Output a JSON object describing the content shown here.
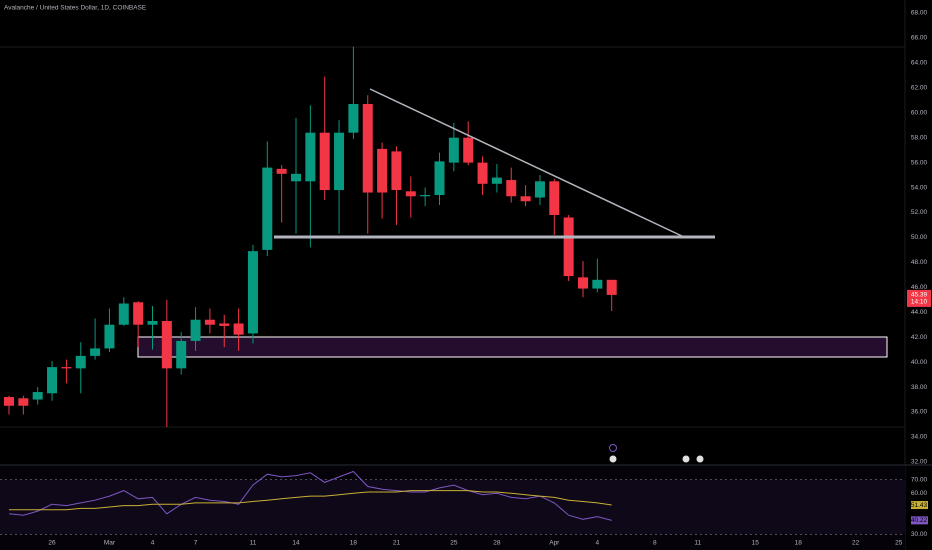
{
  "chart_data": [
    {
      "type": "candlestick",
      "title": "Avalanche / United States Dollar, 1D, COINBASE",
      "countdown": "14:10",
      "up_color": "#089981",
      "down_color": "#f23645",
      "categories": [
        null,
        null,
        null,
        "26",
        null,
        null,
        null,
        "Mar",
        null,
        null,
        "4",
        null,
        null,
        "7",
        null,
        null,
        null,
        "11",
        null,
        null,
        "14",
        null,
        null,
        null,
        "18",
        null,
        null,
        "21",
        null,
        null,
        null,
        "25",
        null,
        null,
        "28",
        null,
        null,
        null,
        "Apr",
        null,
        null,
        "4",
        null,
        null,
        null,
        "8",
        null,
        null,
        "11",
        null,
        null,
        null,
        "15",
        null,
        null,
        "18",
        null,
        null,
        null,
        "22",
        null,
        null,
        "25"
      ],
      "open": [
        37.2,
        37.1,
        37.0,
        37.5,
        39.6,
        39.5,
        40.5,
        41.1,
        43.0,
        44.8,
        43.0,
        43.3,
        39.5,
        41.7,
        43.4,
        43.1,
        43.1,
        42.3,
        49.0,
        55.5,
        54.5,
        54.5,
        58.4,
        53.8,
        58.4,
        60.7,
        57.1,
        56.9,
        53.7,
        53.3,
        53.4,
        56.0,
        58.0,
        56.0,
        54.3,
        54.6,
        53.3,
        53.2,
        54.5,
        51.6,
        46.8,
        45.9,
        46.6,
        null,
        null,
        null,
        null,
        null,
        null,
        null,
        null,
        null,
        null,
        null,
        null,
        null,
        null,
        null,
        null,
        null,
        null,
        null,
        null
      ],
      "high": [
        37.3,
        37.3,
        38.0,
        40.1,
        40.2,
        41.6,
        43.5,
        44.3,
        45.2,
        44.9,
        44.5,
        45.0,
        42.4,
        44.4,
        44.3,
        43.8,
        44.3,
        49.4,
        57.7,
        55.8,
        59.6,
        60.6,
        62.9,
        59.4,
        65.3,
        61.4,
        57.6,
        57.3,
        54.9,
        54.0,
        56.8,
        59.2,
        59.3,
        56.5,
        55.9,
        55.6,
        54.2,
        55.0,
        54.7,
        51.8,
        48.1,
        48.3,
        46.6,
        null,
        null,
        null,
        null,
        null,
        null,
        null,
        null,
        null,
        null,
        null,
        null,
        null,
        null,
        null,
        null,
        null,
        null,
        null,
        null
      ],
      "low": [
        35.8,
        35.8,
        36.6,
        36.9,
        38.3,
        37.5,
        40.2,
        40.8,
        42.9,
        41.2,
        41.0,
        34.8,
        39.0,
        40.9,
        42.3,
        41.2,
        40.9,
        41.5,
        48.5,
        51.2,
        50.3,
        49.2,
        53.0,
        50.3,
        57.9,
        50.3,
        51.5,
        51.0,
        51.6,
        52.5,
        52.6,
        55.3,
        55.8,
        53.4,
        53.6,
        52.8,
        52.5,
        52.6,
        50.2,
        46.5,
        45.2,
        45.6,
        44.1,
        null,
        null,
        null,
        null,
        null,
        null,
        null,
        null,
        null,
        null,
        null,
        null,
        null,
        null,
        null,
        null,
        null,
        null,
        null,
        null
      ],
      "close": [
        36.5,
        36.5,
        37.6,
        39.6,
        39.5,
        40.5,
        41.1,
        43.0,
        44.7,
        43.0,
        43.3,
        39.5,
        41.7,
        43.4,
        43.0,
        42.9,
        42.2,
        48.9,
        55.6,
        55.1,
        55.1,
        58.4,
        53.8,
        58.4,
        60.7,
        53.6,
        53.6,
        53.8,
        53.3,
        53.4,
        56.1,
        58.0,
        56.0,
        54.3,
        54.8,
        53.3,
        52.9,
        54.5,
        51.8,
        46.9,
        45.9,
        46.6,
        45.39,
        null,
        null,
        null,
        null,
        null,
        null,
        null,
        null,
        null,
        null,
        null,
        null,
        null,
        null,
        null,
        null,
        null,
        null,
        null,
        null
      ],
      "ylim": [
        31.75,
        69.04
      ],
      "yticks": [
        {
          "value": 32,
          "label": "32.00"
        },
        {
          "value": 34,
          "label": "34.00"
        },
        {
          "value": 36,
          "label": "36.00"
        },
        {
          "value": 38,
          "label": "38.00"
        },
        {
          "value": 40,
          "label": "40.00"
        },
        {
          "value": 42,
          "label": "42.00"
        },
        {
          "value": 44,
          "label": "44.00"
        },
        {
          "value": 46,
          "label": "46.00"
        },
        {
          "value": 48,
          "label": "48.00"
        },
        {
          "value": 50,
          "label": "50.00"
        },
        {
          "value": 52,
          "label": "52.00"
        },
        {
          "value": 54,
          "label": "54.00"
        },
        {
          "value": 56,
          "label": "56.00"
        },
        {
          "value": 58,
          "label": "58.00"
        },
        {
          "value": 60,
          "label": "60.00"
        },
        {
          "value": 62,
          "label": "62.00"
        },
        {
          "value": 64,
          "label": "64.00"
        },
        {
          "value": 66,
          "label": "66.00"
        },
        {
          "value": 68,
          "label": "68.00"
        }
      ]
    },
    {
      "type": "line",
      "series": [
        {
          "name": "RSI",
          "color": "#7e57c2",
          "values": [
            45,
            44,
            47,
            52,
            51,
            53,
            55,
            58,
            62,
            56,
            57,
            45,
            52,
            57,
            55,
            54,
            52,
            66,
            74,
            72,
            73,
            75,
            68,
            72,
            76,
            65,
            63,
            62,
            61,
            61,
            64,
            66,
            62,
            59,
            60,
            57,
            56,
            58,
            53,
            44,
            41,
            43,
            40.22,
            null,
            null,
            null,
            null,
            null,
            null,
            null,
            null,
            null,
            null,
            null,
            null,
            null,
            null,
            null,
            null,
            null,
            null,
            null,
            null
          ]
        },
        {
          "name": "RSI-based MA",
          "color": "#c9b035",
          "values": [
            48,
            48,
            48,
            48,
            48,
            49,
            49,
            50,
            51,
            51,
            52,
            52,
            52,
            53,
            53,
            53,
            53,
            54,
            55,
            56,
            57,
            58,
            58,
            59,
            60,
            61,
            61,
            61,
            62,
            62,
            62,
            62,
            62,
            61,
            61,
            60,
            59,
            58,
            57,
            55,
            54,
            53,
            51.43,
            null,
            null,
            null,
            null,
            null,
            null,
            null,
            null,
            null,
            null,
            null,
            null,
            null,
            null,
            null,
            null,
            null,
            null,
            null,
            null
          ]
        }
      ],
      "ylim": [
        20,
        80
      ],
      "yticks": [
        {
          "value": 70,
          "label": "70.00"
        },
        {
          "value": 60,
          "label": "60.00"
        },
        {
          "value": 40,
          "label": "40.00"
        },
        {
          "value": 30,
          "label": "30.00"
        }
      ]
    }
  ]
}
